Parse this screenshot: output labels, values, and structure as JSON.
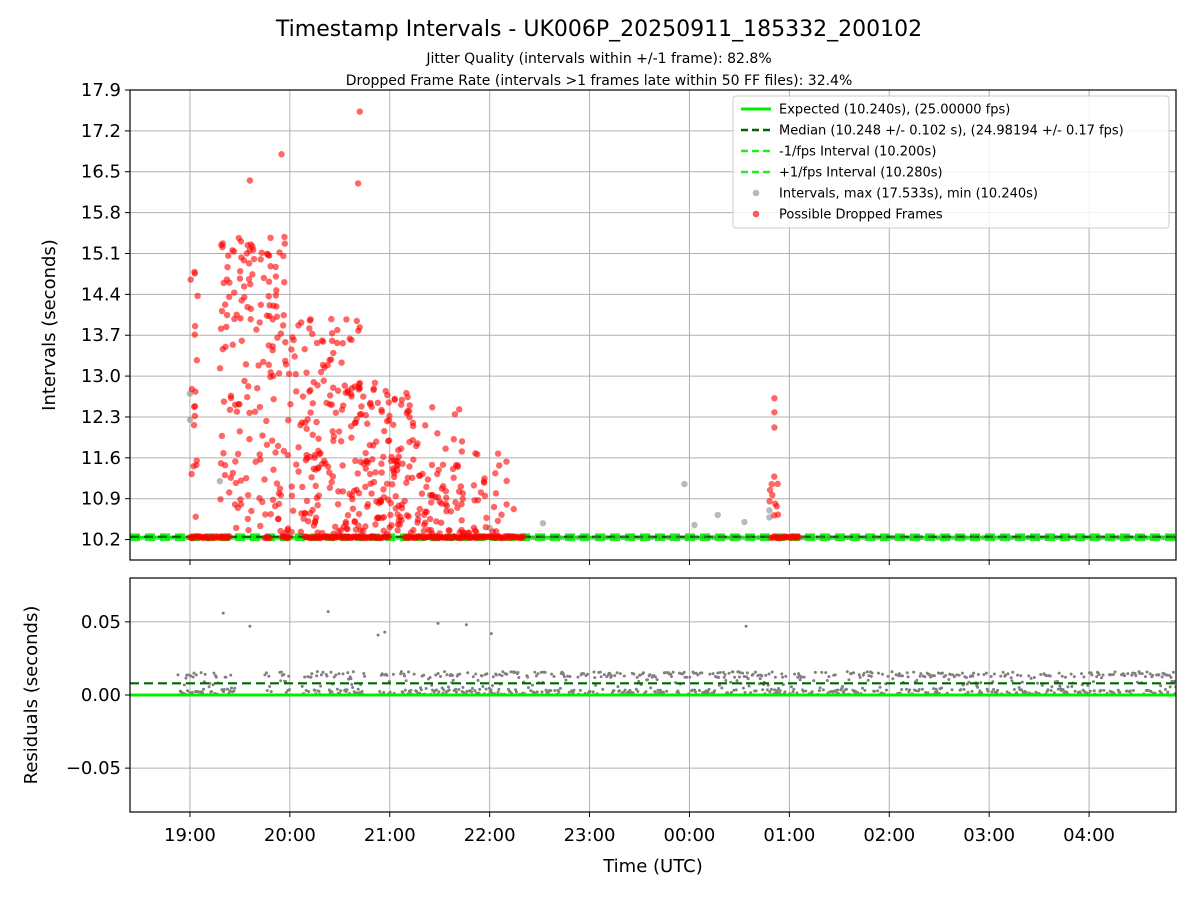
{
  "title": "Timestamp Intervals - UK006P_20250911_185332_200102",
  "subtitle_1": "Jitter Quality (intervals within +/-1 frame): 82.8%",
  "subtitle_2": "Dropped Frame Rate (intervals >1 frames late within 50 FF files): 32.4%",
  "colors": {
    "expected": "#00ee00",
    "median": "#006400",
    "interval_line": "#22ee22",
    "gray_points": "#808080",
    "dropped_points": "#ff0000"
  },
  "chart_data": [
    {
      "type": "scatter",
      "ylabel": "Intervals (seconds)",
      "ylim": [
        9.85,
        17.9
      ],
      "yticks": [
        "17.9",
        "17.2",
        "16.5",
        "15.8",
        "15.1",
        "14.4",
        "13.7",
        "13.0",
        "12.3",
        "11.6",
        "10.9",
        "10.2"
      ],
      "xlim_hours": [
        18.4,
        28.87
      ],
      "grid": true,
      "legend_position": "top-right",
      "legend": [
        "Expected (10.240s), (25.00000 fps)",
        "Median (10.248 +/- 0.102 s), (24.98194 +/- 0.17 fps)",
        "-1/fps Interval (10.200s)",
        "+1/fps Interval (10.280s)",
        "Intervals, max (17.533s), min (10.240s)",
        "Possible Dropped Frames"
      ],
      "reference_lines": {
        "expected": 10.24,
        "median": 10.248,
        "minus_one_frame": 10.2,
        "plus_one_frame": 10.28
      },
      "interval_max": 17.533,
      "interval_min": 10.24,
      "gray_points": [
        {
          "x": "19:00",
          "y": 12.7
        },
        {
          "x": "19:00",
          "y": 12.25
        },
        {
          "x": "19:18",
          "y": 11.2
        },
        {
          "x": "22:00",
          "y": 10.4
        },
        {
          "x": "22:32",
          "y": 10.48
        },
        {
          "x": "23:57",
          "y": 11.15
        },
        {
          "x": "00:03",
          "y": 10.45
        },
        {
          "x": "00:17",
          "y": 10.62
        },
        {
          "x": "00:33",
          "y": 10.5
        },
        {
          "x": "00:48",
          "y": 10.7
        },
        {
          "x": "00:48",
          "y": 10.58
        }
      ],
      "dropped_points_note": "Red cluster 19:00–22:20 spanning 10.24–17.53 s, dense near 10.9–13.0 s; second cluster near 00:50–01:05 up to 12.6 s",
      "dropped_highlights": [
        {
          "x": "20:42",
          "y": 17.53
        },
        {
          "x": "19:55",
          "y": 16.8
        },
        {
          "x": "19:36",
          "y": 16.35
        },
        {
          "x": "20:41",
          "y": 16.3
        },
        {
          "x": "00:51",
          "y": 12.62
        },
        {
          "x": "00:51",
          "y": 12.38
        },
        {
          "x": "00:51",
          "y": 12.12
        }
      ]
    },
    {
      "type": "scatter",
      "ylabel": "Residuals (seconds)",
      "ylim": [
        -0.08,
        0.08
      ],
      "yticks": [
        "0.05",
        "0.00",
        "−0.05"
      ],
      "xlabel": "Time (UTC)",
      "xticks": [
        "19:00",
        "20:00",
        "21:00",
        "22:00",
        "23:00",
        "00:00",
        "01:00",
        "02:00",
        "03:00",
        "04:00"
      ],
      "grid": true,
      "reference_lines": {
        "zero": 0.0,
        "median": 0.008
      },
      "outliers": [
        {
          "x": "19:20",
          "y": 0.056
        },
        {
          "x": "19:36",
          "y": 0.047
        },
        {
          "x": "20:23",
          "y": 0.057
        },
        {
          "x": "20:53",
          "y": 0.041
        },
        {
          "x": "20:57",
          "y": 0.043
        },
        {
          "x": "21:29",
          "y": 0.049
        },
        {
          "x": "21:46",
          "y": 0.048
        },
        {
          "x": "22:01",
          "y": 0.042
        },
        {
          "x": "00:34",
          "y": 0.047
        }
      ],
      "residual_band": [
        0.0,
        0.016
      ]
    }
  ]
}
